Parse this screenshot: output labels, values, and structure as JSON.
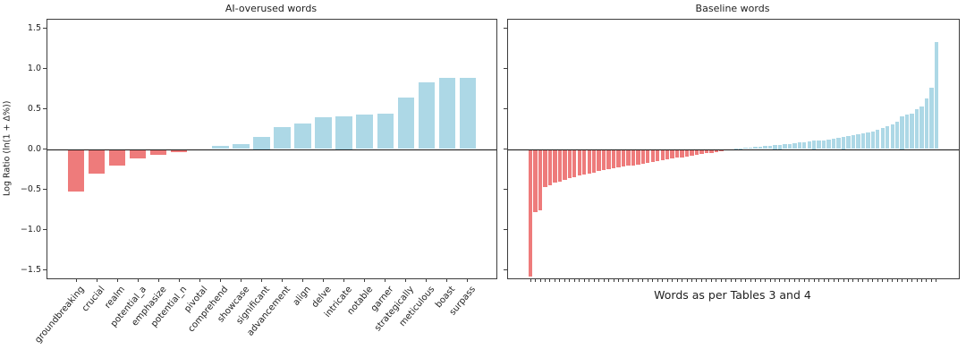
{
  "figure": {
    "background": "#ffffff",
    "text_color": "#1f1f1f"
  },
  "chart_data": [
    {
      "type": "bar",
      "title": "AI-overused words",
      "ylabel": "Log Ratio (ln(1 + Δ%))",
      "xlabel": "",
      "categories": [
        "groundbreaking",
        "crucial",
        "realm",
        "potential_a",
        "emphasize",
        "potential_n",
        "pivotal",
        "comprehend",
        "showcase",
        "significant",
        "advancement",
        "align",
        "delve",
        "intricate",
        "notable",
        "garner",
        "strategically",
        "meticulous",
        "boast",
        "surpass"
      ],
      "values": [
        -0.53,
        -0.3,
        -0.21,
        -0.12,
        -0.07,
        -0.04,
        -0.02,
        0.04,
        0.06,
        0.15,
        0.27,
        0.32,
        0.39,
        0.4,
        0.43,
        0.44,
        0.64,
        0.83,
        0.88,
        0.88
      ],
      "ylim": [
        -1.6,
        1.6
      ],
      "yticks": [
        1.5,
        1.0,
        0.5,
        0.0,
        -0.5,
        -1.0,
        -1.5
      ],
      "ytick_labels": [
        "1.5",
        "1.0",
        "0.5",
        "0.0",
        "−0.5",
        "−1.0",
        "−1.5"
      ],
      "grid": false,
      "legend": null,
      "bar_color_positive": "#ADD8E6",
      "bar_color_negative": "#EE7B7B"
    },
    {
      "type": "bar",
      "title": "Baseline words",
      "ylabel": "",
      "xlabel": "Words as per Tables 3 and 4",
      "categories": [],
      "values": [
        -1.58,
        -0.78,
        -0.76,
        -0.47,
        -0.45,
        -0.42,
        -0.4,
        -0.38,
        -0.36,
        -0.35,
        -0.33,
        -0.32,
        -0.31,
        -0.29,
        -0.27,
        -0.26,
        -0.25,
        -0.24,
        -0.23,
        -0.22,
        -0.21,
        -0.2,
        -0.19,
        -0.18,
        -0.17,
        -0.16,
        -0.15,
        -0.14,
        -0.13,
        -0.12,
        -0.11,
        -0.1,
        -0.09,
        -0.08,
        -0.07,
        -0.06,
        -0.05,
        -0.05,
        -0.04,
        -0.03,
        -0.02,
        -0.01,
        0.01,
        0.01,
        0.02,
        0.02,
        0.03,
        0.03,
        0.04,
        0.04,
        0.05,
        0.05,
        0.06,
        0.06,
        0.07,
        0.08,
        0.08,
        0.09,
        0.1,
        0.11,
        0.11,
        0.12,
        0.13,
        0.14,
        0.15,
        0.16,
        0.17,
        0.18,
        0.19,
        0.21,
        0.22,
        0.24,
        0.26,
        0.28,
        0.31,
        0.34,
        0.4,
        0.43,
        0.44,
        0.49,
        0.53,
        0.63,
        0.76,
        1.32
      ],
      "ylim": [
        -1.6,
        1.6
      ],
      "yticks": [
        1.5,
        1.0,
        0.5,
        0.0,
        -0.5,
        -1.0,
        -1.5
      ],
      "ytick_labels": [],
      "grid": false,
      "legend": null,
      "bar_color_positive": "#ADD8E6",
      "bar_color_negative": "#EE7B7B"
    }
  ]
}
